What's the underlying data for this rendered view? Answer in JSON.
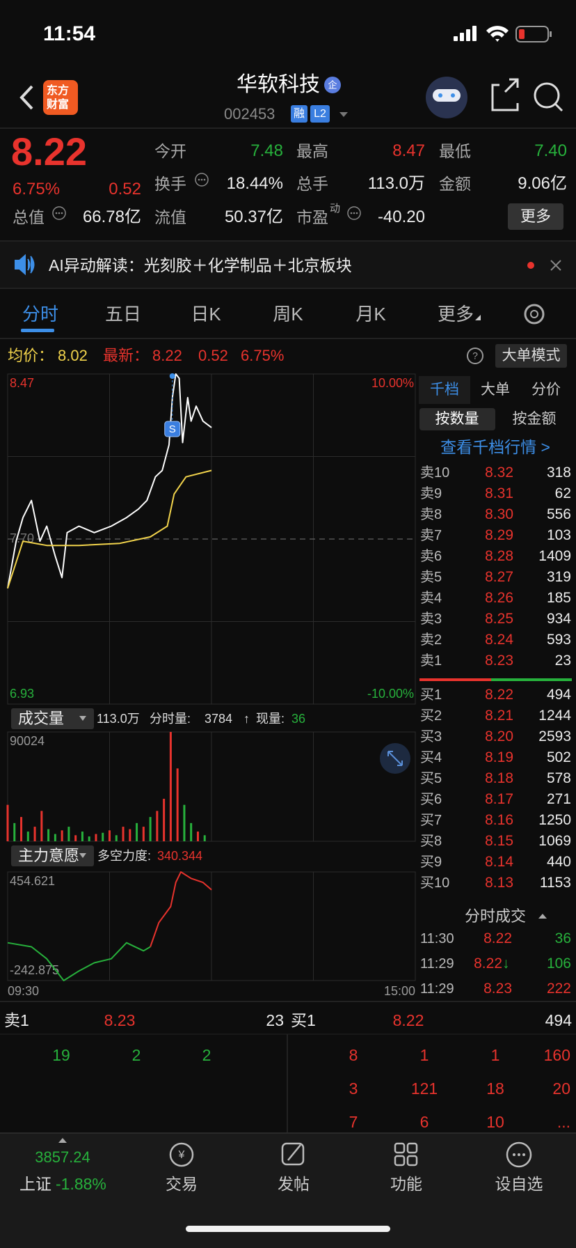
{
  "status_bar": {
    "time": "11:54"
  },
  "header": {
    "logo": [
      "东方",
      "财富"
    ],
    "title": "华软科技",
    "badge": "企",
    "code": "002453",
    "tags": [
      "融",
      "L2"
    ]
  },
  "quote": {
    "price": "8.22",
    "change_pct": "6.75%",
    "change": "0.52",
    "rows": [
      [
        {
          "label": "今开",
          "value": "7.48",
          "color": "#27b13c"
        },
        {
          "label": "最高",
          "value": "8.47",
          "color": "#e8332d"
        },
        {
          "label": "最低",
          "value": "7.40",
          "color": "#27b13c"
        }
      ],
      [
        {
          "label": "换手",
          "value": "18.44%"
        },
        {
          "label": "总手",
          "value": "113.0万"
        },
        {
          "label": "金额",
          "value": "9.06亿"
        }
      ],
      [
        {
          "label": "总值",
          "value": "66.78亿"
        },
        {
          "label": "流值",
          "value": "50.37亿"
        },
        {
          "label": "市盈",
          "sup": "动",
          "value": "-40.20"
        }
      ]
    ],
    "more": "更多"
  },
  "banner": {
    "text": "AI异动解读：光刻胶＋化学制品＋北京板块"
  },
  "tabs": [
    "分时",
    "五日",
    "日K",
    "周K",
    "月K",
    "更多"
  ],
  "info_bar": {
    "avg_label": "均价：",
    "avg": "8.02",
    "latest_label": "最新：",
    "latest": "8.22",
    "change": "0.52",
    "change_pct": "6.75%",
    "mode": "大单模式"
  },
  "side_panel": {
    "tabs": [
      "千档",
      "大单",
      "分价"
    ],
    "sub_tabs": [
      "按数量",
      "按金额"
    ],
    "link": "查看千档行情 >",
    "sell": [
      {
        "label": "卖10",
        "price": "8.32",
        "qty": "318"
      },
      {
        "label": "卖9",
        "price": "8.31",
        "qty": "62"
      },
      {
        "label": "卖8",
        "price": "8.30",
        "qty": "556"
      },
      {
        "label": "卖7",
        "price": "8.29",
        "qty": "103"
      },
      {
        "label": "卖6",
        "price": "8.28",
        "qty": "1409"
      },
      {
        "label": "卖5",
        "price": "8.27",
        "qty": "319"
      },
      {
        "label": "卖4",
        "price": "8.26",
        "qty": "185"
      },
      {
        "label": "卖3",
        "price": "8.25",
        "qty": "934"
      },
      {
        "label": "卖2",
        "price": "8.24",
        "qty": "593"
      },
      {
        "label": "卖1",
        "price": "8.23",
        "qty": "23"
      }
    ],
    "buy": [
      {
        "label": "买1",
        "price": "8.22",
        "qty": "494"
      },
      {
        "label": "买2",
        "price": "8.21",
        "qty": "1244"
      },
      {
        "label": "买3",
        "price": "8.20",
        "qty": "2593"
      },
      {
        "label": "买4",
        "price": "8.19",
        "qty": "502"
      },
      {
        "label": "买5",
        "price": "8.18",
        "qty": "578"
      },
      {
        "label": "买6",
        "price": "8.17",
        "qty": "271"
      },
      {
        "label": "买7",
        "price": "8.16",
        "qty": "1250"
      },
      {
        "label": "买8",
        "price": "8.15",
        "qty": "1069"
      },
      {
        "label": "买9",
        "price": "8.14",
        "qty": "440"
      },
      {
        "label": "买10",
        "price": "8.13",
        "qty": "1153"
      }
    ],
    "trades_title": "分时成交",
    "trades": [
      {
        "time": "11:30",
        "price": "8.22",
        "qty": "36",
        "color": "#27b13c"
      },
      {
        "time": "11:29",
        "price": "8.22",
        "arrow": "↓",
        "qty": "106",
        "color": "#27b13c"
      },
      {
        "time": "11:29",
        "price": "8.23",
        "qty": "222",
        "color": "#e8332d"
      }
    ]
  },
  "chart_data": [
    {
      "type": "line",
      "xlim": [
        0,
        240
      ],
      "ylim": [
        6.93,
        8.47
      ],
      "yticks": [
        8.47,
        {
          "value": 7.7,
          "label": "7.70"
        },
        6.93
      ],
      "y2lim": [
        -10,
        10
      ],
      "y2ticks": [
        {
          "value": 10,
          "label": "10.00%"
        },
        {
          "value": -10,
          "label": "-10.00%"
        }
      ],
      "annotation": "S",
      "series": [
        {
          "color": "#ffffff",
          "x": [
            0,
            5,
            9,
            14,
            19,
            23,
            28,
            32,
            35,
            42,
            51,
            61,
            70,
            77,
            82,
            87,
            91,
            95,
            97,
            99,
            101,
            103,
            106,
            108,
            111,
            115,
            120
          ],
          "values": [
            7.47,
            7.69,
            7.8,
            7.88,
            7.69,
            7.76,
            7.62,
            7.52,
            7.73,
            7.76,
            7.73,
            7.76,
            7.8,
            7.84,
            7.88,
            7.99,
            8.02,
            8.14,
            8.36,
            8.47,
            8.45,
            8.15,
            8.36,
            8.25,
            8.32,
            8.25,
            8.22
          ]
        },
        {
          "color": "#f2d44c",
          "x": [
            0,
            9,
            23,
            42,
            66,
            84,
            94,
            98,
            105,
            120
          ],
          "values": [
            7.47,
            7.69,
            7.67,
            7.67,
            7.68,
            7.71,
            7.76,
            7.91,
            7.99,
            8.02
          ]
        }
      ]
    },
    {
      "type": "bar",
      "title": "成交量",
      "xlim": [
        0,
        240
      ],
      "ylim": [
        0,
        90024
      ],
      "yticks": [
        90024
      ],
      "stats": {
        "total": "113.0万",
        "period_label": "分时量:",
        "period": "3784",
        "arrow": "↑",
        "current_label": "现量:",
        "current": "36"
      },
      "x": [
        0,
        4,
        8,
        12,
        16,
        20,
        24,
        28,
        32,
        36,
        40,
        44,
        48,
        52,
        56,
        60,
        64,
        68,
        72,
        76,
        80,
        84,
        88,
        92,
        96,
        100,
        104,
        108,
        112,
        116
      ],
      "values": [
        30000,
        15000,
        20000,
        8000,
        12000,
        25000,
        10000,
        6000,
        9000,
        12000,
        5000,
        8000,
        4000,
        6000,
        7000,
        9000,
        5000,
        12000,
        10000,
        15000,
        12000,
        20000,
        25000,
        35000,
        90024,
        60000,
        30000,
        15000,
        8000,
        5000
      ],
      "colors": [
        "#e8332d",
        "#27b13c",
        "#e8332d",
        "#27b13c",
        "#e8332d",
        "#e8332d",
        "#27b13c",
        "#27b13c",
        "#e8332d",
        "#27b13c",
        "#e8332d",
        "#27b13c",
        "#27b13c",
        "#e8332d",
        "#27b13c",
        "#e8332d",
        "#27b13c",
        "#e8332d",
        "#e8332d",
        "#27b13c",
        "#e8332d",
        "#27b13c",
        "#e8332d",
        "#e8332d",
        "#e8332d",
        "#e8332d",
        "#27b13c",
        "#27b13c",
        "#e8332d",
        "#27b13c"
      ]
    },
    {
      "type": "line",
      "title": "主力意愿",
      "strength_label": "多空力度:",
      "strength": "340.344",
      "xlim": [
        0,
        240
      ],
      "xticks": [
        {
          "value": 0,
          "label": "09:30"
        },
        {
          "value": 240,
          "label": "15:00"
        }
      ],
      "ylim": [
        -242.875,
        454.621
      ],
      "yticks": [
        454.621,
        -242.875
      ],
      "series": [
        {
          "color": "#27b13c",
          "x": [
            0,
            14,
            23,
            33,
            42,
            51,
            61,
            70,
            80,
            84
          ],
          "values": [
            0,
            -26,
            -103,
            -242.875,
            -181,
            -129,
            -103,
            0,
            -52,
            -26
          ]
        },
        {
          "color": "#e8332d",
          "x": [
            84,
            89,
            96,
            99,
            102,
            108,
            115,
            120
          ],
          "values": [
            -26,
            129,
            233,
            387,
            454.621,
            413,
            387,
            340.344
          ]
        }
      ]
    }
  ],
  "bottom_book": {
    "sell1": {
      "label": "卖1",
      "price": "8.23",
      "qty": "23"
    },
    "buy1": {
      "label": "买1",
      "price": "8.22",
      "qty": "494"
    },
    "sell_rows": [
      [
        "19",
        "2",
        "2"
      ]
    ],
    "buy_rows": [
      [
        "8",
        "1",
        "1",
        "160"
      ],
      [
        "3",
        "121",
        "18",
        "20"
      ],
      [
        "7",
        "6",
        "10",
        "..."
      ]
    ]
  },
  "nav": {
    "index_value": "3857.24",
    "index_name": "上证",
    "index_change": "-1.88%",
    "items": [
      "交易",
      "发帖",
      "功能",
      "设自选"
    ]
  }
}
